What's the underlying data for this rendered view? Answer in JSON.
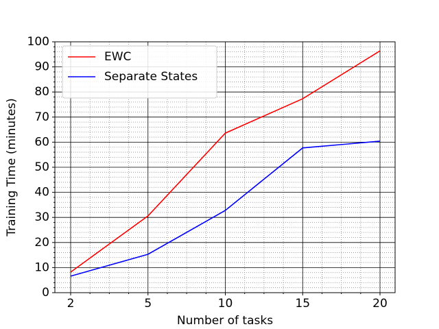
{
  "chart_data": {
    "type": "line",
    "xlabel": "Number of tasks",
    "ylabel": "Training Time (minutes)",
    "categories": [
      "2",
      "5",
      "10",
      "15",
      "20"
    ],
    "series": [
      {
        "name": "EWC",
        "color": "#ff0000",
        "values": [
          8.2,
          30.6,
          63.6,
          77.3,
          96.4
        ]
      },
      {
        "name": "Separate States",
        "color": "#0000ff",
        "values": [
          6.6,
          15.3,
          32.8,
          57.7,
          60.4
        ]
      }
    ],
    "ylim": [
      0,
      100
    ],
    "yticks": [
      0,
      10,
      20,
      30,
      40,
      50,
      60,
      70,
      80,
      90,
      100
    ],
    "grid": true,
    "minor_grid": true,
    "legend": "upper left"
  }
}
